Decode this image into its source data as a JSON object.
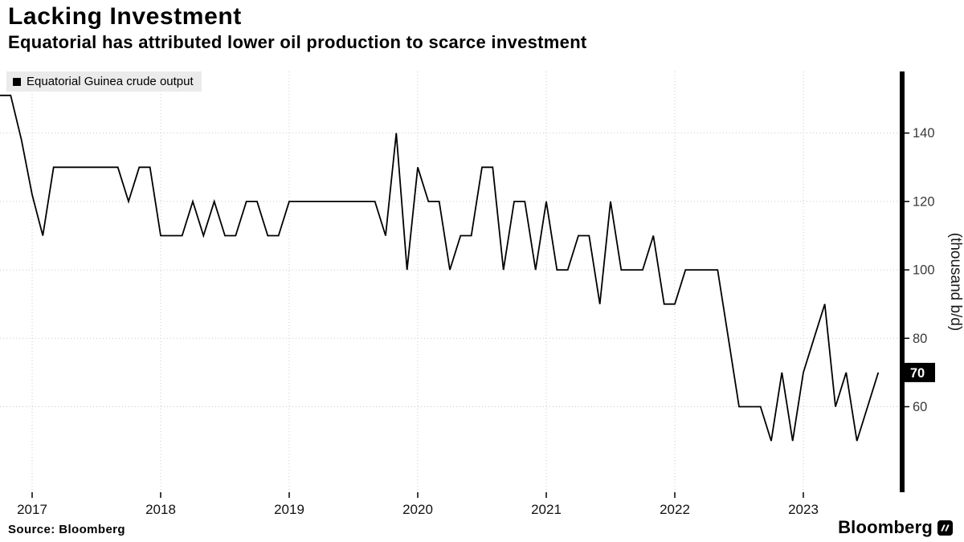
{
  "header": {
    "title": "Lacking Investment",
    "subtitle": "Equatorial has attributed lower oil production to scarce investment"
  },
  "legend": {
    "swatch_color": "#000000",
    "label": "Equatorial Guinea crude output"
  },
  "footer": {
    "source": "Source: Bloomberg",
    "brand": "Bloomberg"
  },
  "chart_data": {
    "type": "line",
    "title": "Lacking Investment",
    "subtitle": "Equatorial has attributed lower oil production to scarce investment",
    "ylabel": "(thousand b/d)",
    "y_ticks": [
      140,
      120,
      100,
      80,
      60
    ],
    "y_lim": [
      35,
      158
    ],
    "x_tick_years": [
      2017,
      2018,
      2019,
      2020,
      2021,
      2022,
      2023
    ],
    "x_axis_range": [
      2016.75,
      2023.75
    ],
    "x_data_range": [
      2016.75,
      2023.5833
    ],
    "grid_style": "dotted",
    "grid_color": "#c9c9c9",
    "axis_color": "#000000",
    "legend_position": "top-left",
    "last_value": 70,
    "last_value_label": "70",
    "series": [
      {
        "name": "Equatorial Guinea crude output",
        "color": "#000000",
        "frequency": "monthly",
        "x_start": "2016-10",
        "x_end": "2023-08",
        "values": [
          151,
          151,
          138,
          122,
          110,
          130,
          130,
          130,
          130,
          130,
          130,
          130,
          120,
          130,
          130,
          110,
          110,
          110,
          120,
          110,
          120,
          110,
          110,
          120,
          120,
          110,
          110,
          120,
          120,
          120,
          120,
          120,
          120,
          120,
          120,
          120,
          110,
          140,
          100,
          130,
          120,
          120,
          100,
          110,
          110,
          130,
          130,
          100,
          120,
          120,
          100,
          120,
          100,
          100,
          110,
          110,
          90,
          120,
          100,
          100,
          100,
          110,
          90,
          90,
          100,
          100,
          100,
          100,
          80,
          60,
          60,
          60,
          50,
          70,
          50,
          70,
          80,
          90,
          60,
          70,
          50,
          60,
          70
        ]
      }
    ]
  }
}
